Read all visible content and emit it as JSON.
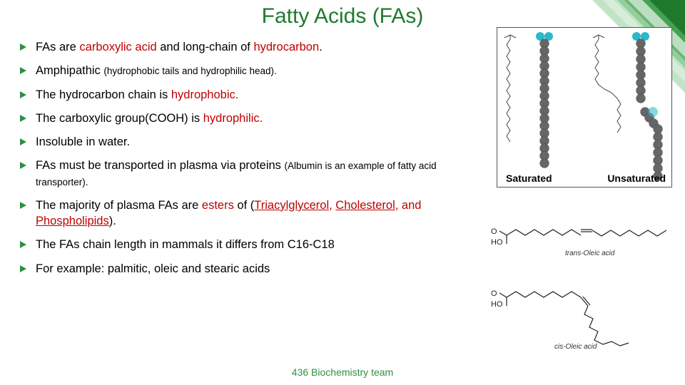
{
  "title": {
    "text": "Fatty Acids (FAs)",
    "color": "#1f7a2e",
    "fontsize": 30
  },
  "accent_color": "#2f8f3f",
  "highlight_color": "#c00000",
  "background_color": "#ffffff",
  "bullets": [
    {
      "pre": "FAs are ",
      "hl1": "carboxylic acid",
      "mid": " and long-chain of ",
      "hl2": "hydrocarbon",
      "post": "."
    },
    {
      "pre": "Amphipathic ",
      "small": "(hydrophobic tails and hydrophilic head).",
      "post": ""
    },
    {
      "pre": "The hydrocarbon chain is ",
      "hl1": "hydrophobic.",
      "post": ""
    },
    {
      "pre": "The carboxylic group(COOH) is ",
      "hl1": "hydrophilic.",
      "post": ""
    },
    {
      "pre": "Insoluble in water.",
      "post": ""
    },
    {
      "pre": "FAs must be transported in plasma via proteins ",
      "small": "(Albumin is an example of fatty acid transporter).",
      "post": ""
    },
    {
      "pre": "The majority of plasma FAs are ",
      "hl1": "esters",
      "mid": " of (",
      "ul1": "Triacylglycerol",
      "mid2": ", ",
      "ul2": "Cholesterol",
      "mid3": ", and ",
      "ul3": "Phospholipids",
      "post": ")."
    },
    {
      "pre": "The FAs chain length in mammals it differs from C16-C18",
      "post": ""
    },
    {
      "pre": " For example: palmitic, oleic and stearic acids",
      "post": ""
    }
  ],
  "footer": "436 Biochemistry team",
  "figures": {
    "top": {
      "left_label": "Saturated",
      "right_label": "Unsaturated",
      "atom_gray": "#666666",
      "atom_cyan": "#2bb8c9",
      "skeletal_stroke": "#444444"
    },
    "mid": {
      "label": "trans-Oleic acid",
      "hooc": "HO",
      "stroke": "#222222"
    },
    "bot": {
      "label": "cis-Oleic acid",
      "hooc": "HO",
      "stroke": "#222222"
    }
  },
  "corner": {
    "dark": "#1f7a2e",
    "mid": "#4fa85b",
    "light": "#a8d9ae",
    "white": "#ffffff"
  }
}
